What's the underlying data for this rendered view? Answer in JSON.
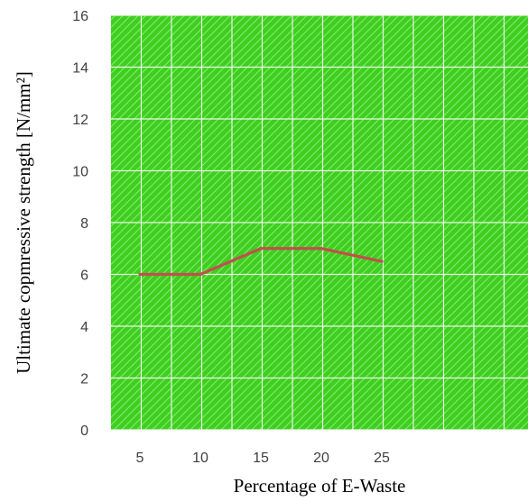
{
  "chart_data": {
    "type": "line",
    "x": [
      5,
      10,
      15,
      20,
      25
    ],
    "categories": [
      "5",
      "10",
      "15",
      "20",
      "25"
    ],
    "series": [
      {
        "values": [
          6,
          6,
          7,
          7,
          6.5
        ]
      }
    ],
    "xlabel": "Percentage of E-Waste",
    "ylabel": "Ultimate copmressive strength [N/mm²]",
    "ylim": [
      0,
      16
    ],
    "yticks": [
      "0",
      "2",
      "4",
      "6",
      "8",
      "10",
      "12",
      "14",
      "16"
    ],
    "grid": true,
    "legend": "none",
    "colors": {
      "plot_background": "#3ecf1f",
      "hatch": "#8ee878",
      "gridline": "#e9f7e3",
      "line": "#c0504d"
    }
  }
}
